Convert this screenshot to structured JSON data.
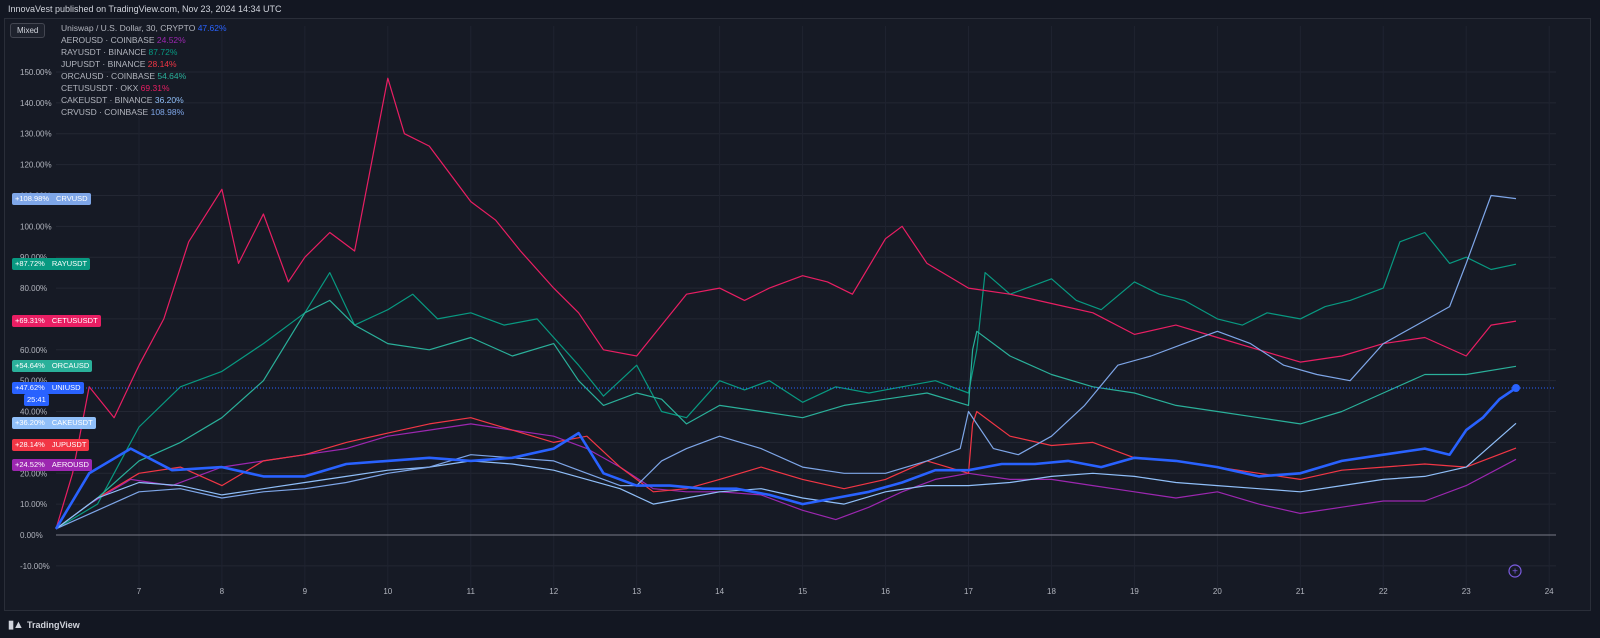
{
  "header": {
    "text": "InnovaVest published on TradingView.com, Nov 23, 2024 14:34 UTC"
  },
  "toolbar": {
    "mode_label": "Mixed"
  },
  "footer": {
    "brand": "TradingView"
  },
  "last_timer": "25:41",
  "chart_data": {
    "type": "line",
    "title": "Uniswap / U.S. Dollar, 30, CRYPTO",
    "x_ticks": [
      "7",
      "8",
      "9",
      "10",
      "11",
      "12",
      "13",
      "14",
      "15",
      "16",
      "17",
      "18",
      "19",
      "20",
      "21",
      "22",
      "23",
      "24"
    ],
    "x_range": [
      6,
      24
    ],
    "y_ticks": [
      "150.00%",
      "140.00%",
      "130.00%",
      "120.00%",
      "110.00%",
      "100.00%",
      "90.00%",
      "80.00%",
      "70.00%",
      "60.00%",
      "50.00%",
      "40.00%",
      "30.00%",
      "20.00%",
      "10.00%",
      "0.00%",
      "-10.00%"
    ],
    "ylim": [
      -10,
      150
    ],
    "ylabel": "",
    "series": [
      {
        "name": "UNIUSD",
        "label": "Uniswap / U.S. Dollar, 30, CRYPTO",
        "value_label": "47.62%",
        "badge": "+47.62%",
        "color": "#2962ff",
        "width": 2.6,
        "x": [
          6,
          6.4,
          6.9,
          7.4,
          8,
          8.5,
          9,
          9.5,
          10,
          10.5,
          11,
          11.5,
          12,
          12.3,
          12.6,
          13,
          13.4,
          13.8,
          14.2,
          14.6,
          15,
          15.4,
          15.8,
          16.2,
          16.6,
          17,
          17.4,
          17.8,
          18.2,
          18.6,
          19,
          19.5,
          20,
          20.5,
          21,
          21.5,
          22,
          22.5,
          22.8,
          23,
          23.2,
          23.4,
          23.6
        ],
        "values": [
          2,
          20,
          28,
          21,
          22,
          19,
          19,
          23,
          24,
          25,
          24,
          25,
          28,
          33,
          20,
          16,
          16,
          15,
          15,
          13,
          10,
          12,
          14,
          17,
          21,
          21,
          23,
          23,
          24,
          22,
          25,
          24,
          22,
          19,
          20,
          24,
          26,
          28,
          26,
          34,
          38,
          44,
          47.62
        ]
      },
      {
        "name": "AEROUSD",
        "label": "AEROUSD · COINBASE",
        "value_label": "24.52%",
        "badge": "+24.52%",
        "color": "#9c27b0",
        "width": 1.2,
        "x": [
          6,
          6.4,
          6.9,
          7.4,
          8,
          8.5,
          9,
          9.5,
          10,
          10.5,
          11,
          11.5,
          12,
          12.4,
          12.8,
          13.2,
          13.6,
          14,
          14.5,
          15,
          15.4,
          15.8,
          16.2,
          16.6,
          17,
          17.5,
          18,
          18.5,
          19,
          19.5,
          20,
          20.5,
          21,
          21.5,
          22,
          22.5,
          23,
          23.6
        ],
        "values": [
          2,
          10,
          18,
          16,
          22,
          24,
          26,
          28,
          32,
          34,
          36,
          34,
          32,
          28,
          22,
          15,
          14,
          14,
          13,
          8,
          5,
          9,
          14,
          18,
          20,
          18,
          18,
          16,
          14,
          12,
          14,
          10,
          7,
          9,
          11,
          11,
          16,
          24.52
        ]
      },
      {
        "name": "RAYUSDT",
        "label": "RAYUSDT · BINANCE",
        "value_label": "87.72%",
        "badge": "+87.72%",
        "color": "#089981",
        "width": 1.2,
        "x": [
          6,
          6.5,
          7,
          7.5,
          8,
          8.5,
          9,
          9.3,
          9.6,
          10,
          10.3,
          10.6,
          11,
          11.4,
          11.8,
          12,
          12.3,
          12.6,
          13,
          13.3,
          13.6,
          14,
          14.3,
          14.6,
          15,
          15.4,
          15.8,
          16.2,
          16.6,
          17,
          17.1,
          17.2,
          17.5,
          18,
          18.3,
          18.6,
          19,
          19.3,
          19.6,
          20,
          20.3,
          20.6,
          21,
          21.3,
          21.6,
          22,
          22.2,
          22.5,
          22.8,
          23,
          23.3,
          23.6
        ],
        "values": [
          2,
          10,
          35,
          48,
          53,
          62,
          72,
          85,
          68,
          73,
          78,
          70,
          72,
          68,
          70,
          64,
          55,
          45,
          55,
          40,
          38,
          50,
          47,
          50,
          43,
          48,
          46,
          48,
          50,
          46,
          60,
          85,
          78,
          83,
          76,
          73,
          82,
          78,
          76,
          70,
          68,
          72,
          70,
          74,
          76,
          80,
          95,
          98,
          88,
          90,
          86,
          87.72
        ]
      },
      {
        "name": "JUPUSDT",
        "label": "JUPUSDT · BINANCE",
        "value_label": "28.14%",
        "badge": "+28.14%",
        "color": "#f23645",
        "width": 1.2,
        "x": [
          6,
          6.5,
          7,
          7.5,
          8,
          8.5,
          9,
          9.5,
          10,
          10.5,
          11,
          11.5,
          12,
          12.4,
          12.8,
          13.2,
          13.6,
          14,
          14.5,
          15,
          15.5,
          16,
          16.5,
          17,
          17.05,
          17.1,
          17.5,
          18,
          18.5,
          19,
          19.5,
          20,
          20.5,
          21,
          21.5,
          22,
          22.5,
          23,
          23.6
        ],
        "values": [
          2,
          12,
          20,
          22,
          16,
          24,
          26,
          30,
          33,
          36,
          38,
          34,
          30,
          32,
          22,
          14,
          15,
          18,
          22,
          18,
          15,
          18,
          24,
          20,
          36,
          40,
          32,
          29,
          30,
          25,
          24,
          22,
          20,
          18,
          21,
          22,
          23,
          22,
          28.14
        ]
      },
      {
        "name": "ORCAUSD",
        "label": "ORCAUSD · COINBASE",
        "value_label": "54.64%",
        "badge": "+54.64%",
        "color": "#2ab09a",
        "width": 1.2,
        "x": [
          6,
          6.5,
          7,
          7.5,
          8,
          8.5,
          9,
          9.3,
          9.6,
          10,
          10.5,
          11,
          11.5,
          12,
          12.3,
          12.6,
          13,
          13.3,
          13.6,
          14,
          14.5,
          15,
          15.5,
          16,
          16.5,
          17,
          17.05,
          17.1,
          17.5,
          18,
          18.5,
          19,
          19.5,
          20,
          20.5,
          21,
          21.5,
          22,
          22.5,
          23,
          23.6
        ],
        "values": [
          2,
          12,
          24,
          30,
          38,
          50,
          72,
          76,
          68,
          62,
          60,
          64,
          58,
          62,
          50,
          42,
          46,
          44,
          36,
          42,
          40,
          38,
          42,
          44,
          46,
          42,
          60,
          66,
          58,
          52,
          48,
          46,
          42,
          40,
          38,
          36,
          40,
          46,
          52,
          52,
          54.64
        ]
      },
      {
        "name": "CETUSUSDT",
        "label": "CETUSUSDT · OKX",
        "value_label": "69.31%",
        "badge": "+69.31%",
        "color": "#e91e63",
        "width": 1.2,
        "x": [
          6,
          6.2,
          6.4,
          6.7,
          7,
          7.3,
          7.6,
          8,
          8.2,
          8.5,
          8.8,
          9,
          9.3,
          9.6,
          10,
          10.2,
          10.5,
          11,
          11.3,
          11.6,
          12,
          12.3,
          12.6,
          13,
          13.3,
          13.6,
          14,
          14.3,
          14.6,
          15,
          15.3,
          15.6,
          16,
          16.2,
          16.5,
          17,
          17.5,
          18,
          18.5,
          19,
          19.5,
          20,
          20.5,
          21,
          21.5,
          22,
          22.5,
          23,
          23.3,
          23.6
        ],
        "values": [
          2,
          20,
          48,
          38,
          55,
          70,
          95,
          112,
          88,
          104,
          82,
          90,
          98,
          92,
          148,
          130,
          126,
          108,
          102,
          92,
          80,
          72,
          60,
          58,
          68,
          78,
          80,
          76,
          80,
          84,
          82,
          78,
          96,
          100,
          88,
          80,
          78,
          75,
          72,
          65,
          68,
          64,
          60,
          56,
          58,
          62,
          64,
          58,
          68,
          69.31
        ]
      },
      {
        "name": "CAKEUSDT",
        "label": "CAKEUSDT · BINANCE",
        "value_label": "36.20%",
        "badge": "+36.20%",
        "color": "#90bff9",
        "width": 1.2,
        "x": [
          6,
          6.5,
          7,
          7.5,
          8,
          8.5,
          9,
          9.5,
          10,
          10.5,
          11,
          11.5,
          12,
          12.4,
          12.8,
          13.2,
          13.6,
          14,
          14.5,
          15,
          15.5,
          16,
          16.5,
          17,
          17.5,
          18,
          18.5,
          19,
          19.5,
          20,
          20.5,
          21,
          21.5,
          22,
          22.5,
          23,
          23.6
        ],
        "values": [
          2,
          12,
          17,
          16,
          13,
          15,
          17,
          19,
          21,
          22,
          24,
          23,
          21,
          18,
          15,
          10,
          12,
          14,
          15,
          12,
          10,
          14,
          16,
          16,
          17,
          19,
          20,
          19,
          17,
          16,
          15,
          14,
          16,
          18,
          19,
          22,
          36.2
        ]
      },
      {
        "name": "CRVUSD",
        "label": "CRVUSD · COINBASE",
        "value_label": "108.98%",
        "badge": "+108.98%",
        "color": "#7ea6e8",
        "width": 1.2,
        "x": [
          6,
          6.5,
          7,
          7.5,
          8,
          8.5,
          9,
          9.5,
          10,
          10.5,
          11,
          11.5,
          12,
          12.4,
          12.8,
          13,
          13.3,
          13.6,
          14,
          14.5,
          15,
          15.5,
          16,
          16.5,
          16.9,
          17,
          17.3,
          17.6,
          18,
          18.4,
          18.8,
          19.2,
          19.6,
          20,
          20.4,
          20.8,
          21.2,
          21.6,
          22,
          22.4,
          22.8,
          23,
          23.3,
          23.6
        ],
        "values": [
          2,
          8,
          14,
          15,
          12,
          14,
          15,
          17,
          20,
          22,
          26,
          25,
          24,
          20,
          16,
          16,
          24,
          28,
          32,
          28,
          22,
          20,
          20,
          24,
          28,
          40,
          28,
          26,
          32,
          42,
          55,
          58,
          62,
          66,
          62,
          55,
          52,
          50,
          62,
          68,
          74,
          88,
          110,
          108.98
        ]
      }
    ]
  }
}
